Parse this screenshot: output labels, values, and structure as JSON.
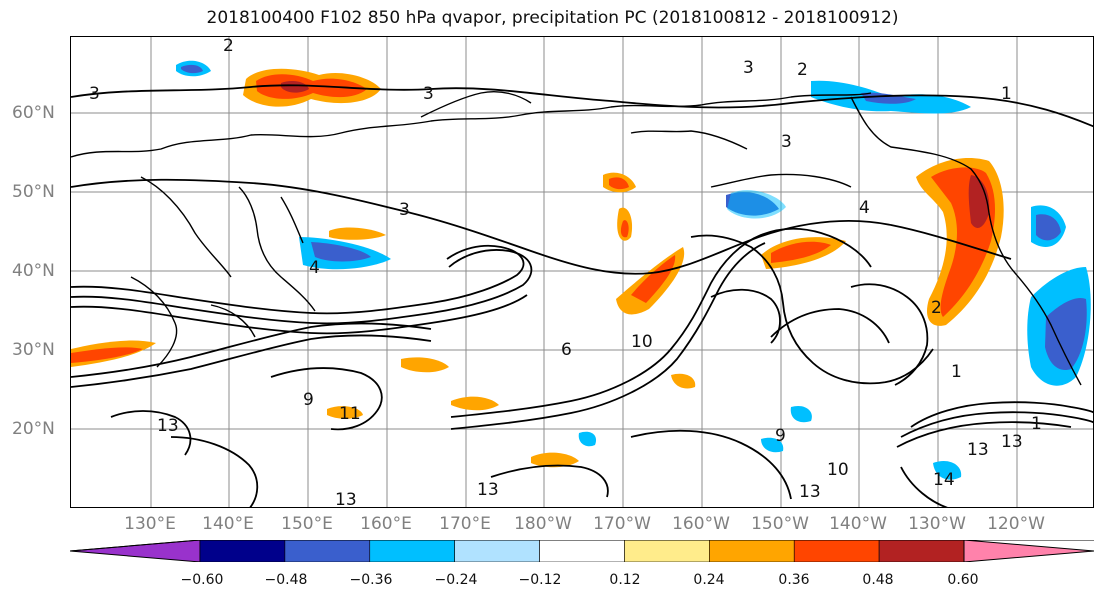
{
  "title": "2018100400 F102 850 hPa qvapor, precipitation PC (2018100812 - 2018100912)",
  "lat_labels": [
    "60°N",
    "50°N",
    "40°N",
    "30°N",
    "20°N"
  ],
  "lon_labels": [
    "130°E",
    "140°E",
    "150°E",
    "160°E",
    "170°E",
    "180°W",
    "170°W",
    "160°W",
    "150°W",
    "140°W",
    "130°W",
    "120°W"
  ],
  "contour_labels": [
    "2",
    "3",
    "3",
    "2",
    "1",
    "3",
    "3",
    "3",
    "4",
    "4",
    "2",
    "1",
    "6",
    "10",
    "9",
    "11",
    "13",
    "13",
    "13",
    "14",
    "13",
    "13",
    "9",
    "10",
    "13",
    "1"
  ],
  "colorbar": {
    "ticks": [
      "−0.60",
      "−0.48",
      "−0.36",
      "−0.24",
      "−0.12",
      "0.12",
      "0.24",
      "0.36",
      "0.48",
      "0.60"
    ],
    "colors": [
      "#9932cc",
      "#00008b",
      "#3a5fcd",
      "#00bfff",
      "#b0e2ff",
      "#ffffff",
      "#ffec8b",
      "#ffa500",
      "#ff4500",
      "#b22222",
      "#ff82ab"
    ]
  }
}
